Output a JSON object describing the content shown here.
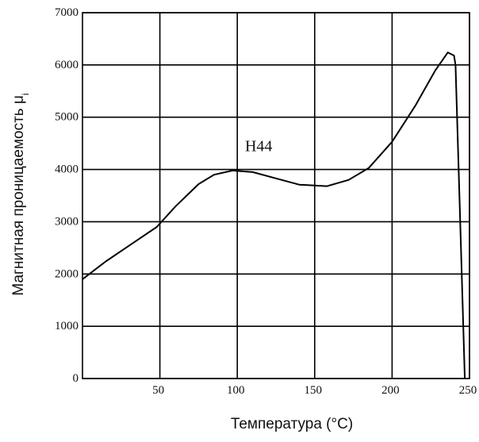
{
  "chart_data": {
    "type": "line",
    "title": "",
    "xlabel": "Температура (°С)",
    "ylabel": "Магнитная проницаемость μ",
    "ylabel_subscript": "i",
    "xlim": [
      0,
      250
    ],
    "ylim": [
      0,
      7000
    ],
    "x_ticks": [
      50,
      100,
      150,
      200,
      250
    ],
    "y_ticks": [
      0,
      1000,
      2000,
      3000,
      4000,
      5000,
      6000,
      7000
    ],
    "grid": true,
    "annotations": [
      {
        "text": "H44",
        "x": 105,
        "y": 4350
      }
    ],
    "series": [
      {
        "color": "#000000",
        "x": [
          0,
          15,
          30,
          48,
          60,
          75,
          85,
          97,
          110,
          125,
          140,
          158,
          172,
          185,
          200,
          215,
          228,
          236,
          240,
          241,
          244,
          247
        ],
        "y": [
          1900,
          2240,
          2540,
          2900,
          3290,
          3720,
          3900,
          3980,
          3950,
          3830,
          3710,
          3680,
          3800,
          4030,
          4530,
          5220,
          5900,
          6240,
          6180,
          6000,
          3000,
          0
        ]
      }
    ]
  }
}
